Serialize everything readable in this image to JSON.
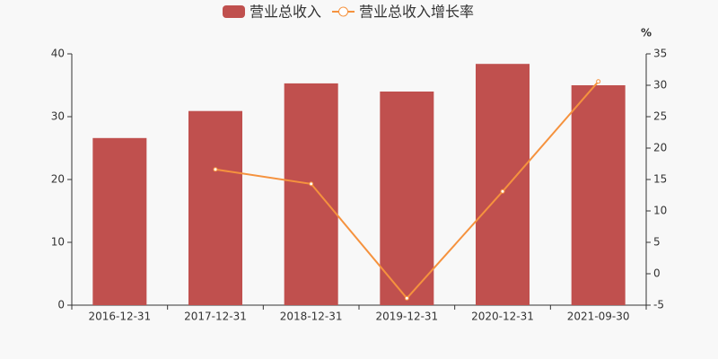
{
  "chart_data": {
    "type": "bar",
    "categories": [
      "2016-12-31",
      "2017-12-31",
      "2018-12-31",
      "2019-12-31",
      "2020-12-31",
      "2021-09-30"
    ],
    "series": [
      {
        "name": "营业总收入",
        "type": "bar",
        "color": "#c0504e",
        "values": [
          26.6,
          30.9,
          35.3,
          34.0,
          38.4,
          35.0
        ]
      },
      {
        "name": "营业总收入增长率",
        "type": "line",
        "axis": "y2",
        "color": "#f5923e",
        "values": [
          null,
          16.6,
          14.3,
          -3.9,
          13.1,
          30.6
        ]
      }
    ],
    "ylim": [
      0,
      40
    ],
    "yticks": [
      0,
      10,
      20,
      30,
      40
    ],
    "y2lim": [
      -5,
      35
    ],
    "y2ticks": [
      -5,
      0,
      5,
      10,
      15,
      20,
      25,
      30,
      35
    ],
    "y2label": "%"
  }
}
